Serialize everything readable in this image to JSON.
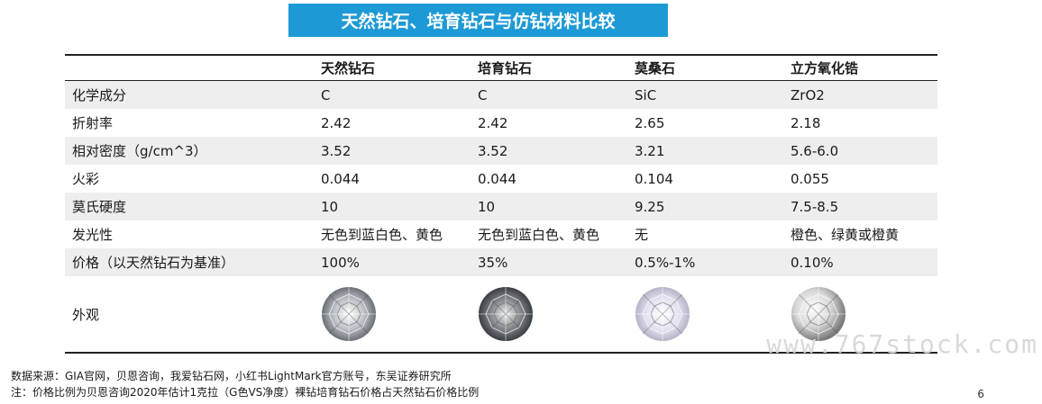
{
  "title": "天然钻石、培育钻石与仿钻材料比较",
  "table": {
    "columns": [
      "",
      "天然钻石",
      "培育钻石",
      "莫桑石",
      "立方氧化锆"
    ],
    "rows": [
      {
        "label": "化学成分",
        "values": [
          "C",
          "C",
          "SiC",
          "ZrO2"
        ]
      },
      {
        "label": "折射率",
        "values": [
          "2.42",
          "2.42",
          "2.65",
          "2.18"
        ]
      },
      {
        "label": "相对密度（g/cm^3）",
        "values": [
          "3.52",
          "3.52",
          "3.21",
          "5.6-6.0"
        ]
      },
      {
        "label": "火彩",
        "values": [
          "0.044",
          "0.044",
          "0.104",
          "0.055"
        ]
      },
      {
        "label": "莫氏硬度",
        "values": [
          "10",
          "10",
          "9.25",
          "7.5-8.5"
        ]
      },
      {
        "label": "发光性",
        "values": [
          "无色到蓝白色、黄色",
          "无色到蓝白色、黄色",
          "无",
          "橙色、绿黄或橙黄"
        ]
      },
      {
        "label": "价格（以天然钻石为基准）",
        "values": [
          "100%",
          "35%",
          "0.5%-1%",
          "0.10%"
        ]
      }
    ],
    "image_row_label": "外观",
    "images": [
      "natural-diamond",
      "lab-grown-diamond",
      "moissanite",
      "cubic-zirconia"
    ]
  },
  "notes": {
    "source": "数据来源：GIA官网，贝恩咨询，我爱钻石网，小红书LightMark官方账号，东吴证券研究所",
    "note": "注：价格比例为贝恩咨询2020年估计1克拉（G色VS净度）裸钻培育钻石价格占天然钻石价格比例"
  },
  "page_number": "6",
  "watermark": "www.767stock.com",
  "colors": {
    "title_bg": "#1d9ad6",
    "row_shade": "#eeeeee"
  }
}
